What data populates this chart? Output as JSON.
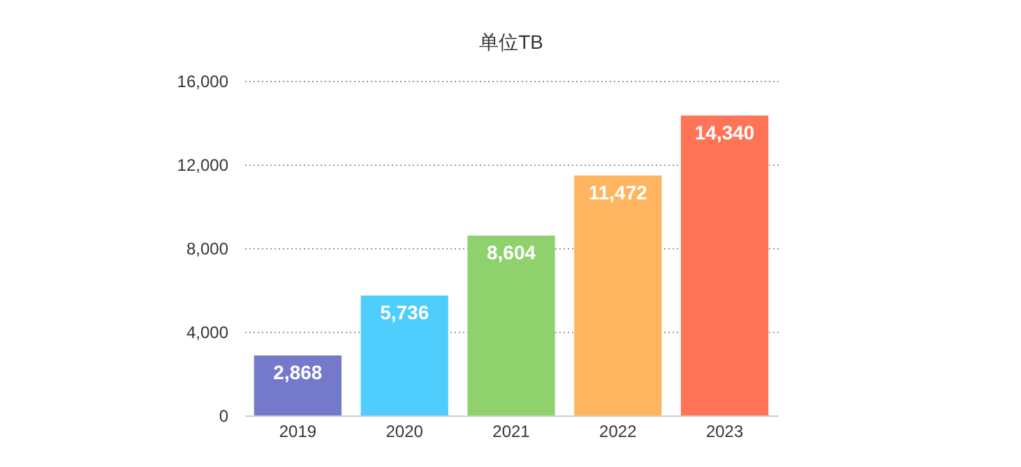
{
  "chart_data": {
    "type": "bar",
    "title": "单位TB",
    "categories": [
      "2019",
      "2020",
      "2021",
      "2022",
      "2023"
    ],
    "values": [
      2868,
      5736,
      8604,
      11472,
      14340
    ],
    "value_labels": [
      "2,868",
      "5,736",
      "8,604",
      "11,472",
      "14,340"
    ],
    "colors": [
      "#7479cc",
      "#4fcdfd",
      "#8fd16d",
      "#ffb55f",
      "#ff7457"
    ],
    "ylim": [
      0,
      16000
    ],
    "yticks": [
      0,
      {
        "value": 4000,
        "label": "4,000"
      },
      {
        "value": 8000,
        "label": "8,000"
      },
      {
        "value": 12000,
        "label": "12,000"
      },
      {
        "value": 16000,
        "label": "16,000"
      }
    ],
    "grid": "y"
  }
}
